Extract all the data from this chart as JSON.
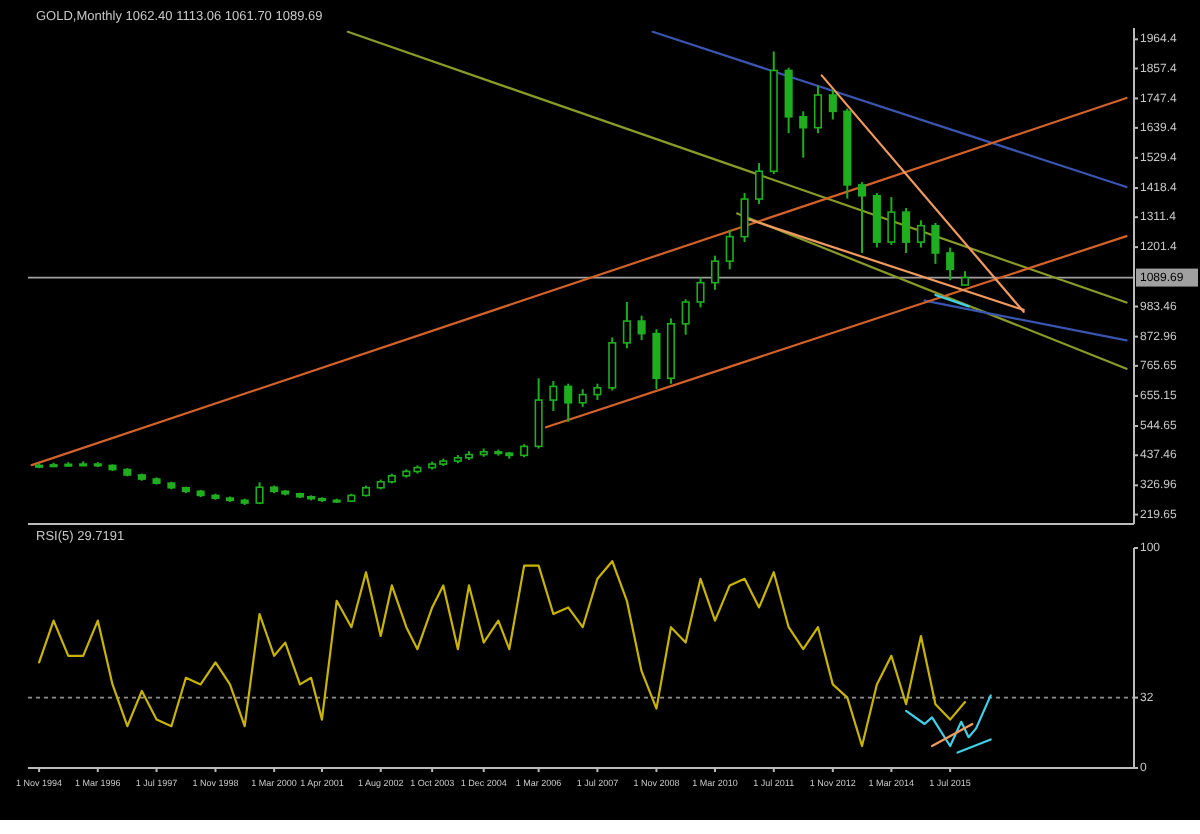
{
  "chart_data": [
    {
      "type": "candlestick",
      "title": "GOLD,Monthly  1062.40 1113.06 1061.70 1089.69",
      "color": "#1fae1f",
      "x": [
        "1994-11",
        "1995-03",
        "1995-07",
        "1995-11",
        "1996-03",
        "1996-07",
        "1996-11",
        "1997-03",
        "1997-07",
        "1997-11",
        "1998-03",
        "1998-07",
        "1998-11",
        "1999-03",
        "1999-07",
        "1999-11",
        "2000-03",
        "2000-06",
        "2000-10",
        "2001-01",
        "2001-04",
        "2001-08",
        "2001-12",
        "2002-04",
        "2002-08",
        "2002-11",
        "2003-03",
        "2003-06",
        "2003-10",
        "2004-01",
        "2004-05",
        "2004-08",
        "2004-12",
        "2005-04",
        "2005-07",
        "2005-11",
        "2006-03",
        "2006-07",
        "2006-11",
        "2007-03",
        "2007-07",
        "2007-11",
        "2008-03",
        "2008-07",
        "2008-11",
        "2009-03",
        "2009-07",
        "2009-11",
        "2010-03",
        "2010-07",
        "2010-11",
        "2011-03",
        "2011-07",
        "2011-11",
        "2012-03",
        "2012-07",
        "2012-11",
        "2013-03",
        "2013-07",
        "2013-11",
        "2014-03",
        "2014-07",
        "2014-11",
        "2015-03",
        "2015-07",
        "2015-11"
      ],
      "ohlc": [
        [
          395,
          408,
          390,
          400
        ],
        [
          400,
          410,
          395,
          402
        ],
        [
          402,
          412,
          396,
          404
        ],
        [
          404,
          415,
          398,
          405
        ],
        [
          405,
          412,
          394,
          400
        ],
        [
          400,
          404,
          380,
          385
        ],
        [
          385,
          390,
          360,
          365
        ],
        [
          365,
          370,
          344,
          350
        ],
        [
          350,
          356,
          330,
          335
        ],
        [
          335,
          340,
          312,
          318
        ],
        [
          318,
          322,
          298,
          305
        ],
        [
          305,
          310,
          284,
          290
        ],
        [
          290,
          296,
          274,
          280
        ],
        [
          280,
          286,
          266,
          272
        ],
        [
          272,
          278,
          255,
          262
        ],
        [
          262,
          338,
          258,
          320
        ],
        [
          320,
          326,
          298,
          305
        ],
        [
          305,
          310,
          290,
          296
        ],
        [
          296,
          300,
          280,
          285
        ],
        [
          285,
          290,
          272,
          278
        ],
        [
          278,
          283,
          266,
          272
        ],
        [
          272,
          278,
          262,
          269
        ],
        [
          269,
          296,
          266,
          290
        ],
        [
          290,
          326,
          286,
          318
        ],
        [
          318,
          348,
          312,
          340
        ],
        [
          340,
          370,
          334,
          362
        ],
        [
          362,
          386,
          355,
          378
        ],
        [
          378,
          400,
          370,
          392
        ],
        [
          392,
          414,
          385,
          405
        ],
        [
          405,
          425,
          398,
          416
        ],
        [
          416,
          438,
          408,
          428
        ],
        [
          428,
          452,
          420,
          440
        ],
        [
          440,
          462,
          432,
          450
        ],
        [
          450,
          458,
          436,
          445
        ],
        [
          445,
          450,
          425,
          437
        ],
        [
          437,
          478,
          430,
          470
        ],
        [
          470,
          720,
          462,
          640
        ],
        [
          640,
          710,
          600,
          690
        ],
        [
          690,
          700,
          560,
          630
        ],
        [
          630,
          680,
          615,
          660
        ],
        [
          660,
          700,
          640,
          685
        ],
        [
          685,
          870,
          675,
          850
        ],
        [
          850,
          1000,
          830,
          930
        ],
        [
          930,
          950,
          860,
          884
        ],
        [
          884,
          900,
          680,
          720
        ],
        [
          720,
          940,
          700,
          920
        ],
        [
          920,
          1010,
          880,
          1000
        ],
        [
          1000,
          1090,
          980,
          1071
        ],
        [
          1071,
          1170,
          1045,
          1150
        ],
        [
          1150,
          1265,
          1120,
          1240
        ],
        [
          1240,
          1400,
          1220,
          1378
        ],
        [
          1378,
          1510,
          1360,
          1480
        ],
        [
          1480,
          1920,
          1470,
          1850
        ],
        [
          1850,
          1860,
          1620,
          1680
        ],
        [
          1680,
          1700,
          1530,
          1640
        ],
        [
          1640,
          1795,
          1620,
          1760
        ],
        [
          1760,
          1780,
          1670,
          1700
        ],
        [
          1700,
          1710,
          1380,
          1430
        ],
        [
          1430,
          1440,
          1180,
          1390
        ],
        [
          1390,
          1400,
          1200,
          1220
        ],
        [
          1220,
          1385,
          1210,
          1330
        ],
        [
          1330,
          1345,
          1180,
          1220
        ],
        [
          1220,
          1300,
          1200,
          1280
        ],
        [
          1280,
          1290,
          1140,
          1180
        ],
        [
          1180,
          1200,
          1080,
          1120
        ],
        [
          1062.4,
          1113.06,
          1061.7,
          1089.69
        ]
      ],
      "series": [
        {
          "type": "line",
          "color": "#8a9a28",
          "x": [
            "2001-11",
            "2019-07"
          ],
          "values": [
            1992,
            998
          ]
        },
        {
          "type": "line",
          "color": "#8a9a28",
          "x": [
            "2010-09",
            "2019-07"
          ],
          "values": [
            1325,
            755
          ]
        },
        {
          "type": "line",
          "color": "#3a55b0",
          "x": [
            "2008-10",
            "2019-07"
          ],
          "values": [
            1992,
            1422
          ]
        },
        {
          "type": "line",
          "color": "#3a55b0",
          "x": [
            "2014-12",
            "2019-07"
          ],
          "values": [
            1005,
            859
          ]
        },
        {
          "type": "line",
          "color": "#d2622a",
          "x": [
            "1994-09",
            "2019-07"
          ],
          "values": [
            401,
            1749
          ]
        },
        {
          "type": "line",
          "color": "#d2622a",
          "x": [
            "2006-05",
            "2019-07"
          ],
          "values": [
            540,
            1242
          ]
        },
        {
          "type": "line",
          "color": "#f09a60",
          "x": [
            "2012-08",
            "2017-03"
          ],
          "values": [
            1832,
            964
          ]
        },
        {
          "type": "line",
          "color": "#f09a60",
          "x": [
            "2010-12",
            "2017-03"
          ],
          "values": [
            1304,
            971
          ]
        },
        {
          "type": "line",
          "color": "#40d0e8",
          "x": [
            "2015-03",
            "2015-12"
          ],
          "values": [
            1026,
            984
          ]
        }
      ],
      "xlim": [
        "1994-08",
        "2019-09"
      ],
      "ylim": [
        185,
        2006
      ],
      "yticks": [
        {
          "value": 1964.4,
          "label": "1964.4"
        },
        {
          "value": 1857.4,
          "label": "1857.4"
        },
        {
          "value": 1747.4,
          "label": "1747.4"
        },
        {
          "value": 1639.4,
          "label": "1639.4"
        },
        {
          "value": 1529.4,
          "label": "1529.4"
        },
        {
          "value": 1418.4,
          "label": "1418.4"
        },
        {
          "value": 1311.4,
          "label": "1311.4"
        },
        {
          "value": 1201.4,
          "label": "1201.4"
        },
        {
          "value": 983.46,
          "label": "983.46"
        },
        {
          "value": 872.96,
          "label": "872.96"
        },
        {
          "value": 765.65,
          "label": "765.65"
        },
        {
          "value": 655.15,
          "label": "655.15"
        },
        {
          "value": 544.65,
          "label": "544.65"
        },
        {
          "value": 437.46,
          "label": "437.46"
        },
        {
          "value": 326.96,
          "label": "326.96"
        },
        {
          "value": 219.65,
          "label": "219.65"
        }
      ],
      "ref_lines": [
        {
          "axis": "y",
          "value": 1089.69,
          "label": "1089.69",
          "color": "#a0a0a0"
        }
      ],
      "tick_labels": "y"
    },
    {
      "type": "line",
      "title": "RSI(5) 29.7191",
      "color": "#c8b400",
      "x": [
        "1994-11",
        "1995-03",
        "1995-07",
        "1995-11",
        "1996-03",
        "1996-07",
        "1996-11",
        "1997-03",
        "1997-07",
        "1997-11",
        "1998-03",
        "1998-07",
        "1998-11",
        "1999-03",
        "1999-07",
        "1999-11",
        "2000-03",
        "2000-06",
        "2000-10",
        "2001-01",
        "2001-04",
        "2001-08",
        "2001-12",
        "2002-04",
        "2002-08",
        "2002-11",
        "2003-03",
        "2003-06",
        "2003-10",
        "2004-01",
        "2004-05",
        "2004-08",
        "2004-12",
        "2005-04",
        "2005-07",
        "2005-11",
        "2006-03",
        "2006-07",
        "2006-11",
        "2007-03",
        "2007-07",
        "2007-11",
        "2008-03",
        "2008-07",
        "2008-11",
        "2009-03",
        "2009-07",
        "2009-11",
        "2010-03",
        "2010-07",
        "2010-11",
        "2011-03",
        "2011-07",
        "2011-11",
        "2012-03",
        "2012-07",
        "2012-11",
        "2013-03",
        "2013-07",
        "2013-11",
        "2014-03",
        "2014-07",
        "2014-11",
        "2015-03",
        "2015-07",
        "2015-11"
      ],
      "values": [
        48,
        67,
        51,
        51,
        67,
        38,
        19,
        35,
        22,
        19,
        41,
        38,
        48,
        38,
        19,
        70,
        51,
        57,
        38,
        41,
        22,
        76,
        64,
        89,
        60,
        83,
        64,
        54,
        73,
        83,
        54,
        83,
        57,
        67,
        54,
        92,
        92,
        70,
        73,
        64,
        86,
        94,
        76,
        44,
        27,
        64,
        57,
        86,
        67,
        83,
        86,
        73,
        89,
        64,
        54,
        64,
        38,
        32,
        10,
        38,
        51,
        29,
        60,
        29,
        22,
        30
      ],
      "series": [
        {
          "type": "line",
          "color": "#40d0e8",
          "x": [
            "2014-07",
            "2014-12",
            "2015-02",
            "2015-07",
            "2015-10",
            "2015-12",
            "2016-02",
            "2016-06"
          ],
          "values": [
            26,
            20,
            23,
            10,
            21,
            14,
            18,
            33
          ]
        },
        {
          "type": "line",
          "color": "#40d0e8",
          "x": [
            "2015-09",
            "2016-06"
          ],
          "values": [
            7,
            13
          ]
        },
        {
          "type": "line",
          "color": "#f09a60",
          "x": [
            "2015-02",
            "2016-01"
          ],
          "values": [
            10,
            20
          ]
        }
      ],
      "xlim": [
        "1994-08",
        "2019-09"
      ],
      "ylim": [
        0,
        100
      ],
      "yticks": [
        0,
        32,
        100
      ],
      "xticks": [
        {
          "value": "1994-11",
          "label": "1 Nov 1994"
        },
        {
          "value": "1996-03",
          "label": "1 Mar 1996"
        },
        {
          "value": "1997-07",
          "label": "1 Jul 1997"
        },
        {
          "value": "1998-11",
          "label": "1 Nov 1998"
        },
        {
          "value": "2000-03",
          "label": "1 Mar 2000"
        },
        {
          "value": "2001-04",
          "label": "1 Apr 2001"
        },
        {
          "value": "2002-08",
          "label": "1 Aug 2002"
        },
        {
          "value": "2003-10",
          "label": "1 Oct 2003"
        },
        {
          "value": "2004-12",
          "label": "1 Dec 2004"
        },
        {
          "value": "2006-03",
          "label": "1 Mar 2006"
        },
        {
          "value": "2007-07",
          "label": "1 Jul 2007"
        },
        {
          "value": "2008-11",
          "label": "1 Nov 2008"
        },
        {
          "value": "2010-03",
          "label": "1 Mar 2010"
        },
        {
          "value": "2011-07",
          "label": "1 Jul 2011"
        },
        {
          "value": "2012-11",
          "label": "1 Nov 2012"
        },
        {
          "value": "2014-03",
          "label": "1 Mar 2014"
        },
        {
          "value": "2015-07",
          "label": "1 Jul 2015"
        }
      ],
      "ref_lines": [
        {
          "axis": "y",
          "value": 32,
          "color": "#909090",
          "line_style": "dashed"
        }
      ]
    }
  ]
}
